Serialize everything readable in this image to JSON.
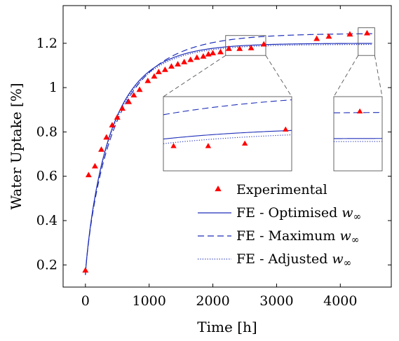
{
  "chart_data": {
    "type": "line",
    "xlabel": "Time [h]",
    "ylabel": "Water Uptake [%]",
    "xlim": [
      -350,
      4800
    ],
    "ylim": [
      0.1,
      1.37
    ],
    "xticks": [
      0,
      1000,
      2000,
      3000,
      4000
    ],
    "yticks": [
      0.2,
      0.4,
      0.6,
      0.8,
      1,
      1.2
    ],
    "xtick_labels": [
      "0",
      "1000",
      "2000",
      "3000",
      "4000"
    ],
    "ytick_labels": [
      "0.2",
      "0.4",
      "0.6",
      "0.8",
      "1",
      "1.2"
    ],
    "grid": false,
    "legend_position": "bottom-right",
    "series": [
      {
        "name": "Experimental",
        "kind": "scatter",
        "marker": "triangle",
        "color": "#ff0000",
        "x": [
          0,
          50,
          150,
          250,
          330,
          420,
          500,
          580,
          680,
          760,
          850,
          980,
          1080,
          1150,
          1250,
          1350,
          1450,
          1550,
          1650,
          1750,
          1850,
          1930,
          2000,
          2120,
          2250,
          2420,
          2600,
          2800,
          3630,
          3820,
          4150,
          4420
        ],
        "y": [
          0.175,
          0.605,
          0.645,
          0.72,
          0.775,
          0.83,
          0.865,
          0.905,
          0.935,
          0.965,
          0.99,
          1.03,
          1.05,
          1.07,
          1.08,
          1.095,
          1.105,
          1.115,
          1.125,
          1.135,
          1.14,
          1.15,
          1.155,
          1.16,
          1.175,
          1.175,
          1.178,
          1.195,
          1.22,
          1.23,
          1.24,
          1.245
        ]
      },
      {
        "name": "FE - Optimised w",
        "kind": "line",
        "dash": "solid",
        "color": "#1f2fb8",
        "a": 0.155,
        "b": 1.045,
        "tau": 420,
        "n": 0.86
      },
      {
        "name": "FE - Maximum w",
        "kind": "line",
        "dash": "dashed",
        "color": "#1f2fb8",
        "a": 0.155,
        "b": 1.09,
        "tau": 490,
        "n": 0.84
      },
      {
        "name": "FE - Adjusted w",
        "kind": "line",
        "dash": "dotted",
        "color": "#1f2fb8",
        "a": 0.155,
        "b": 1.04,
        "tau": 425,
        "n": 0.86
      }
    ],
    "zoom_insets": [
      {
        "x_range": [
          2200,
          2830
        ],
        "y_range": [
          1.145,
          1.235
        ]
      },
      {
        "x_range": [
          4280,
          4540
        ],
        "y_range": [
          1.145,
          1.27
        ]
      }
    ],
    "legend_entries": [
      {
        "label": "Experimental",
        "subscript": ""
      },
      {
        "label": "FE - Optimised ",
        "var": "w",
        "subscript": "∞"
      },
      {
        "label": "FE - Maximum ",
        "var": "w",
        "subscript": "∞"
      },
      {
        "label": "FE - Adjusted ",
        "var": "w",
        "subscript": "∞"
      }
    ]
  }
}
